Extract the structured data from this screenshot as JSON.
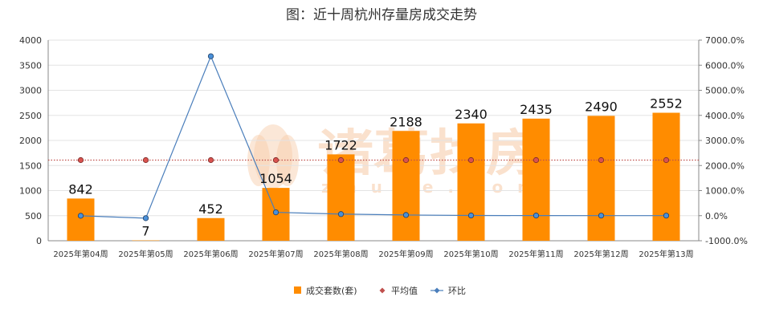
{
  "chart_data": {
    "type": "bar",
    "title": "图：近十周杭州存量房成交走势",
    "categories": [
      "2025年第04周",
      "2025年第05周",
      "2025年第06周",
      "2025年第07周",
      "2025年第08周",
      "2025年第09周",
      "2025年第10周",
      "2025年第11周",
      "2025年第12周",
      "2025年第13周"
    ],
    "series": [
      {
        "name": "成交套数(套)",
        "type": "bar",
        "axis": "left",
        "color": "#ff8c00",
        "values": [
          842,
          7,
          452,
          1054,
          1722,
          2188,
          2340,
          2435,
          2490,
          2552
        ]
      },
      {
        "name": "平均值",
        "type": "line",
        "axis": "left",
        "color": "#c0504d",
        "values": [
          1608,
          1608,
          1608,
          1608,
          1608,
          1608,
          1608,
          1608,
          1608,
          1608
        ]
      },
      {
        "name": "环比",
        "type": "line",
        "axis": "right",
        "color": "#4a7ebb",
        "values": [
          -0.04,
          -0.99,
          63.57,
          1.33,
          0.63,
          0.27,
          0.07,
          0.04,
          0.02,
          0.02
        ]
      }
    ],
    "y_left": {
      "min": 0,
      "max": 4000,
      "step": 500,
      "ticks": [
        "0",
        "500",
        "1000",
        "1500",
        "2000",
        "2500",
        "3000",
        "3500",
        "4000"
      ]
    },
    "y_right": {
      "min": -10,
      "max": 70,
      "step": 10,
      "ticks": [
        "-1000.0%",
        "0.0%",
        "1000.0%",
        "2000.0%",
        "3000.0%",
        "4000.0%",
        "5000.0%",
        "6000.0%",
        "7000.0%"
      ]
    },
    "data_labels": [
      "842",
      "7",
      "452",
      "1054",
      "1722",
      "2188",
      "2340",
      "2435",
      "2490",
      "2552"
    ],
    "grid": true,
    "legend_position": "bottom",
    "watermark": {
      "text": "诸葛找房",
      "subtext": "zhuge.com"
    }
  }
}
